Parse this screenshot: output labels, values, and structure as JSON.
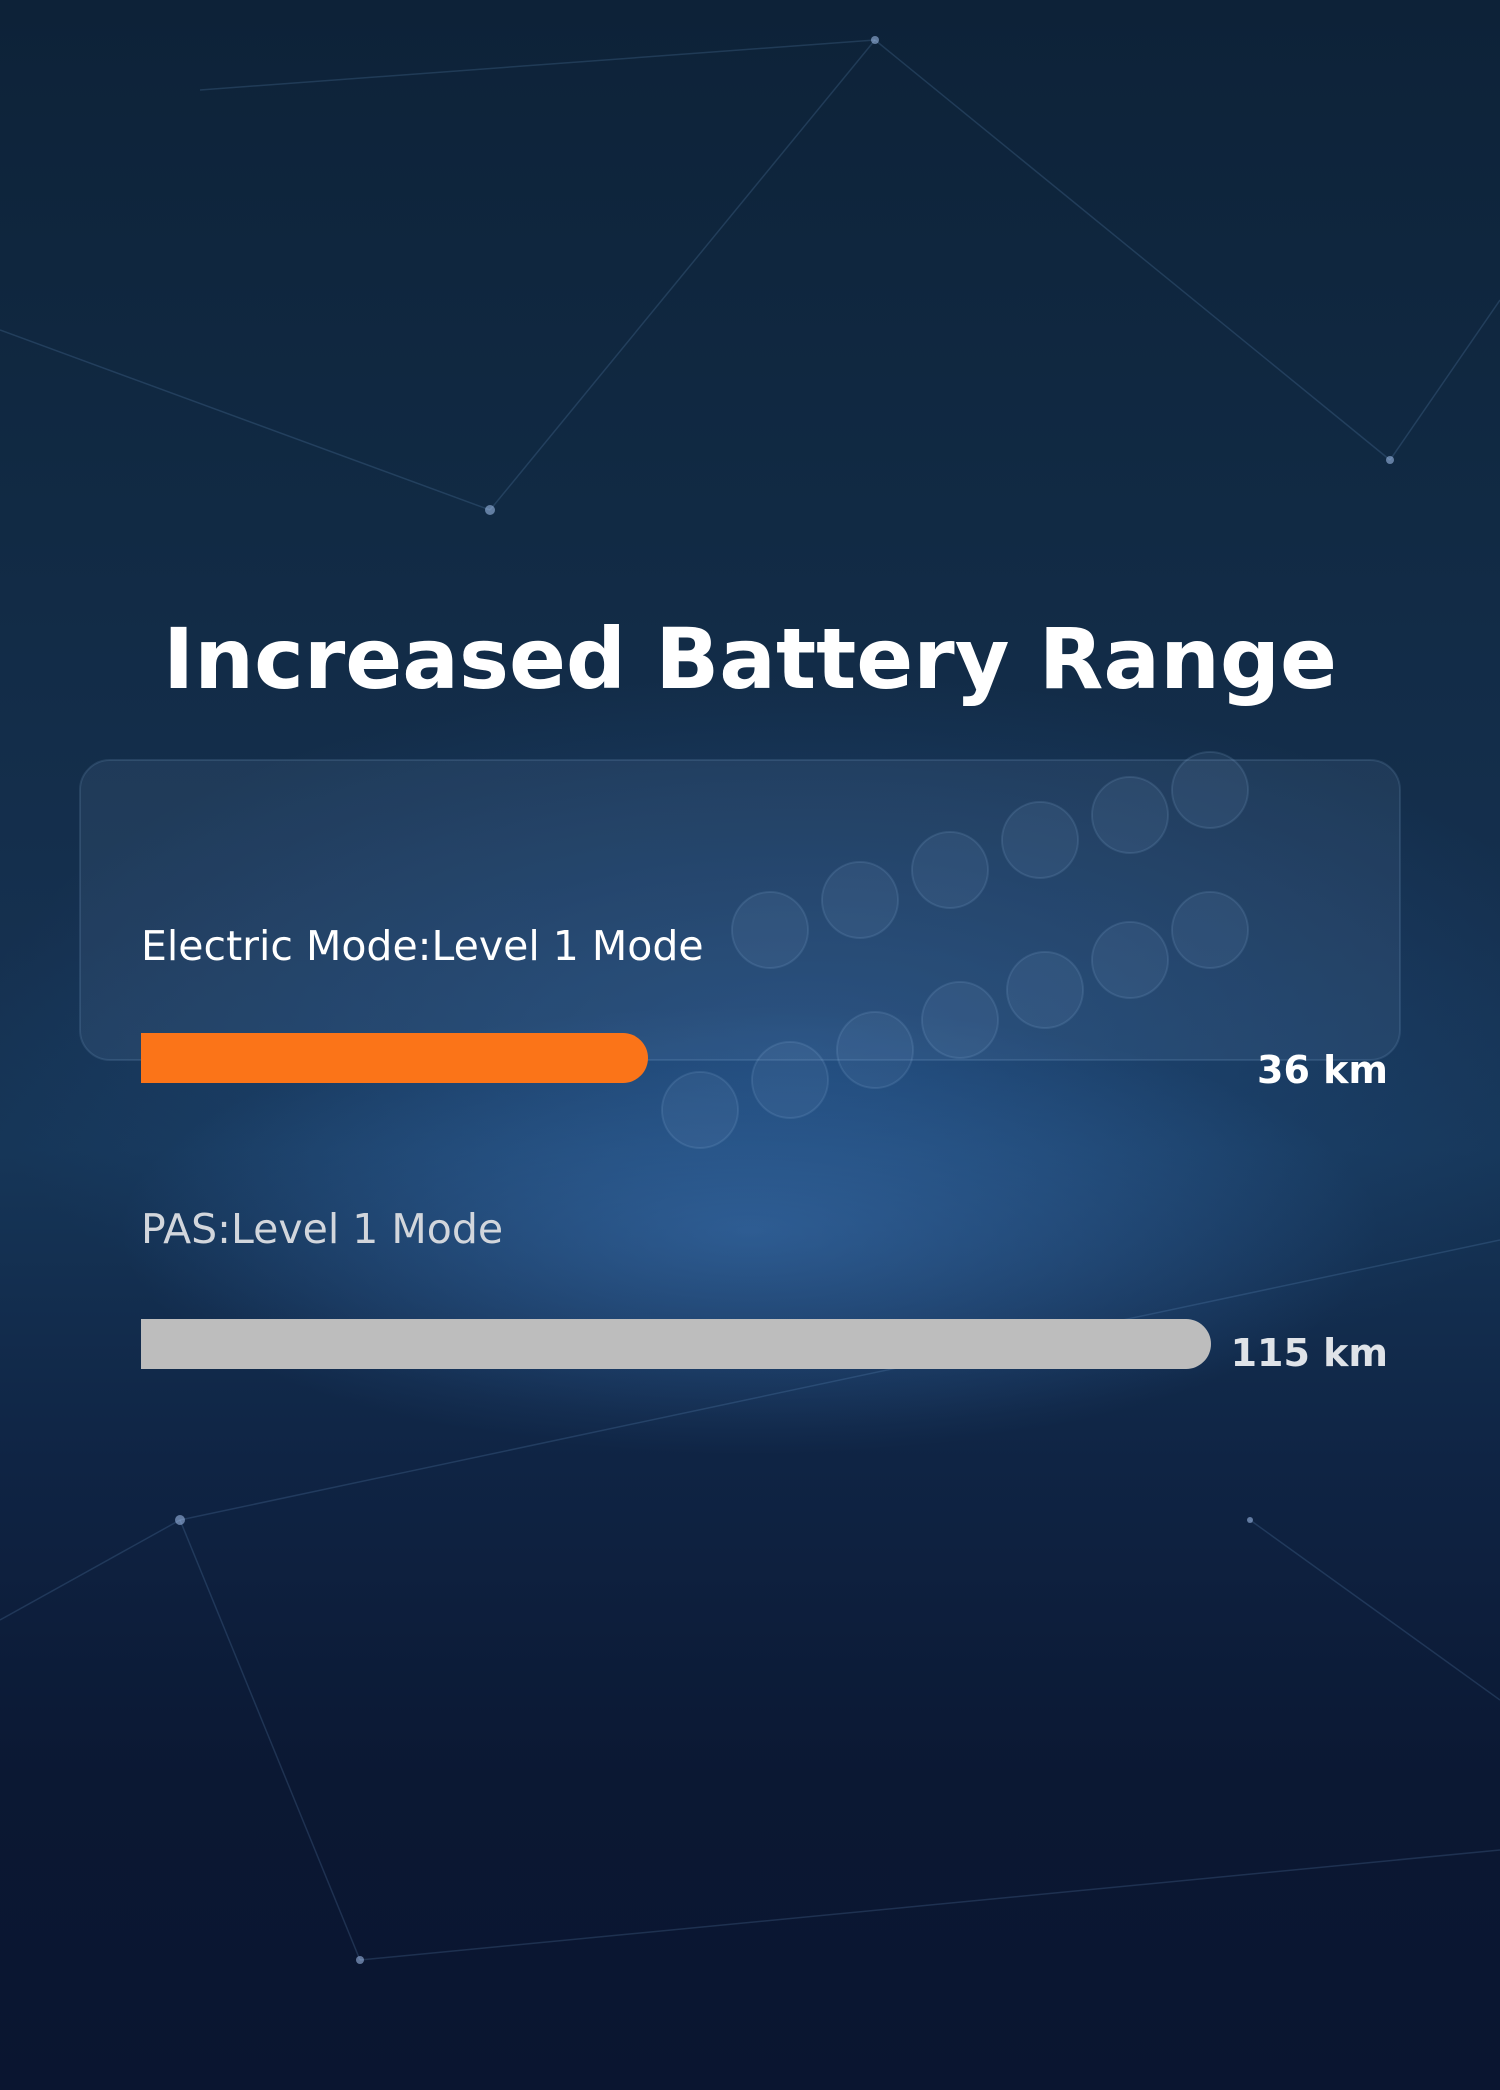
{
  "title": "Increased Battery Range",
  "chart_data": {
    "type": "bar",
    "orientation": "horizontal",
    "categories": [
      "Electric Mode:Level 1 Mode",
      "PAS:Level 1 Mode"
    ],
    "values": [
      36,
      115
    ],
    "value_labels": [
      "36 km",
      "115 km"
    ],
    "unit": "km",
    "colors": [
      "#fb7418",
      "#bdbdbd"
    ],
    "grid": false
  }
}
